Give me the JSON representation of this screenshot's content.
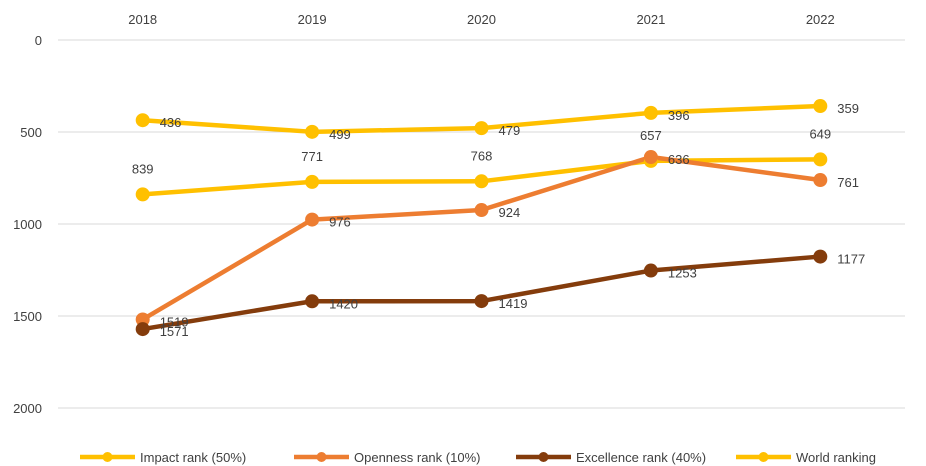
{
  "chart_data": {
    "type": "line",
    "categories": [
      "2018",
      "2019",
      "2020",
      "2021",
      "2022"
    ],
    "x_axis_position": "top",
    "y_axis_inverted": true,
    "ylim": [
      0,
      2000
    ],
    "yticks": [
      0,
      500,
      1000,
      1500,
      2000
    ],
    "grid": true,
    "legend_position": "bottom",
    "series": [
      {
        "name": "Impact rank (50%)",
        "color": "#FFC000",
        "values": [
          436,
          499,
          479,
          396,
          359
        ]
      },
      {
        "name": "Openness rank (10%)",
        "color": "#ED7D31",
        "values": [
          1519,
          976,
          924,
          636,
          761
        ]
      },
      {
        "name": "Excellence rank (40%)",
        "color": "#843C0C",
        "values": [
          1571,
          1420,
          1419,
          1253,
          1177
        ]
      },
      {
        "name": "World ranking",
        "color": "#FFC000",
        "values": [
          839,
          771,
          768,
          657,
          649
        ]
      }
    ]
  }
}
